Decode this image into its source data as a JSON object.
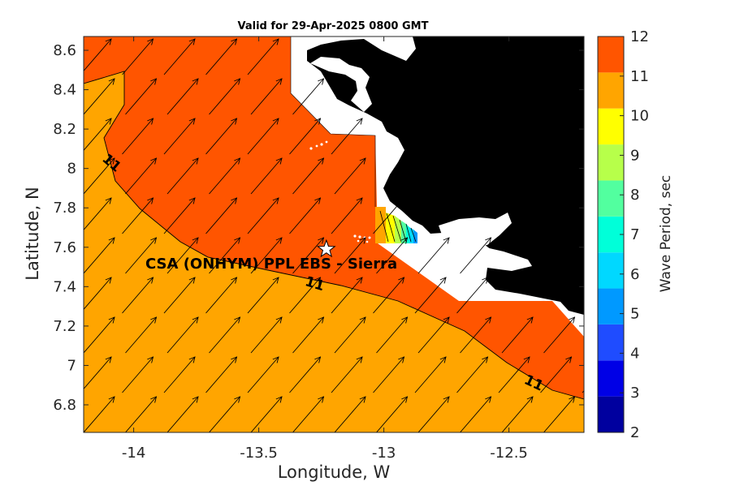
{
  "title": "Valid for 29-Apr-2025 0800 GMT",
  "xlabel": "Longitude, W",
  "ylabel": "Latitude, N",
  "colorbar_label": "Wave Period, sec",
  "site_label": "CSA (ONHYM) PPL EBS  - Sierra",
  "contour_labels": [
    "11",
    "11",
    "11"
  ],
  "chart_data": {
    "type": "heatmap",
    "title": "Valid for 29-Apr-2025 0800 GMT",
    "xlabel": "Longitude, W",
    "ylabel": "Latitude, N",
    "xlim": [
      -14.2,
      -12.2
    ],
    "ylim": [
      6.66,
      8.67
    ],
    "xticks": [
      -14,
      -13.5,
      -13,
      -12.5
    ],
    "xtick_labels": [
      "-14",
      "-13.5",
      "-13",
      "-12.5"
    ],
    "yticks": [
      6.8,
      7.0,
      7.2,
      7.4,
      7.6,
      7.8,
      8.0,
      8.2,
      8.4,
      8.6
    ],
    "ytick_labels": [
      "6.8",
      "7",
      "7.2",
      "7.4",
      "7.6",
      "7.8",
      "8",
      "8.2",
      "8.4",
      "8.6"
    ],
    "colorbar": {
      "label": "Wave Period, sec",
      "range": [
        2,
        12
      ],
      "ticks": [
        "2",
        "3",
        "4",
        "5",
        "6",
        "7",
        "8",
        "9",
        "10",
        "11",
        "12"
      ],
      "colors": [
        "#00009f",
        "#0000e6",
        "#1f4cff",
        "#0099ff",
        "#00d8ff",
        "#00ffd9",
        "#52ff9f",
        "#b7ff4a",
        "#ffff00",
        "#ffa500",
        "#ff5500"
      ]
    },
    "fields": [
      {
        "period_band": "11-12 s",
        "color": "#ff5500",
        "region": "offshore band north of 11 s contour"
      },
      {
        "period_band": "10-11 s",
        "color": "#ffa500",
        "region": "southwest of 11 s contour"
      }
    ],
    "contours": [
      {
        "value": 11,
        "points": [
          [
            -14.2,
            8.44
          ],
          [
            -14.03,
            8.5
          ],
          [
            -14.03,
            8.36
          ],
          [
            -14.12,
            8.19
          ],
          [
            -14.08,
            7.95
          ],
          [
            -13.92,
            7.83
          ],
          [
            -13.75,
            7.7
          ],
          [
            -13.58,
            7.55
          ],
          [
            -13.35,
            7.48
          ],
          [
            -13.05,
            7.4
          ],
          [
            -12.82,
            7.32
          ],
          [
            -12.65,
            7.14
          ],
          [
            -12.45,
            6.98
          ],
          [
            -12.32,
            6.9
          ],
          [
            -12.2,
            6.83
          ]
        ]
      }
    ],
    "site": {
      "lon": -13.23,
      "lat": 7.59,
      "label": "CSA (ONHYM) PPL EBS  - Sierra",
      "marker": "star"
    },
    "land_color": "#000000",
    "arrows": "wave direction vectors pointing north-east"
  }
}
